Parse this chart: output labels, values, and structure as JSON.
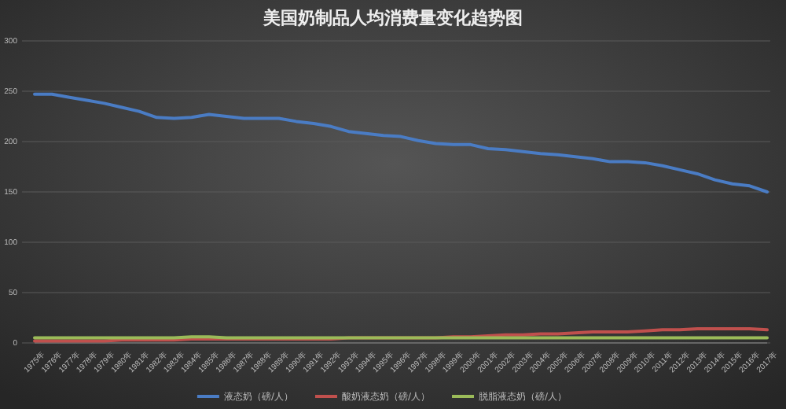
{
  "chart_data": {
    "type": "line",
    "title": "美国奶制品人均消费量变化趋势图",
    "categories": [
      "1975年",
      "1976年",
      "1977年",
      "1978年",
      "1979年",
      "1980年",
      "1981年",
      "1982年",
      "1983年",
      "1984年",
      "1985年",
      "1986年",
      "1987年",
      "1988年",
      "1989年",
      "1990年",
      "1991年",
      "1992年",
      "1993年",
      "1994年",
      "1995年",
      "1996年",
      "1997年",
      "1998年",
      "1999年",
      "2000年",
      "2001年",
      "2002年",
      "2003年",
      "2004年",
      "2005年",
      "2006年",
      "2007年",
      "2008年",
      "2009年",
      "2010年",
      "2011年",
      "2012年",
      "2013年",
      "2014年",
      "2015年",
      "2016年",
      "2017年"
    ],
    "series": [
      {
        "name": "液态奶（磅/人）",
        "color": "#4a7cc4",
        "values": [
          247,
          247,
          244,
          241,
          238,
          234,
          230,
          224,
          223,
          224,
          227,
          225,
          223,
          223,
          223,
          220,
          218,
          215,
          210,
          208,
          206,
          205,
          201,
          198,
          197,
          197,
          193,
          192,
          190,
          188,
          187,
          185,
          183,
          180,
          180,
          179,
          176,
          172,
          168,
          162,
          158,
          156,
          150
        ]
      },
      {
        "name": "酸奶液态奶（磅/人）",
        "color": "#c0504d",
        "values": [
          2,
          2,
          2,
          2,
          2,
          3,
          3,
          3,
          3,
          4,
          4,
          4,
          4,
          4,
          4,
          4,
          4,
          4,
          5,
          5,
          5,
          5,
          5,
          5,
          6,
          6,
          7,
          8,
          8,
          9,
          9,
          10,
          11,
          11,
          11,
          12,
          13,
          13,
          14,
          14,
          14,
          14,
          13
        ]
      },
      {
        "name": "脱脂液态奶（磅/人）",
        "color": "#9bbb59",
        "values": [
          5,
          5,
          5,
          5,
          5,
          5,
          5,
          5,
          5,
          6,
          6,
          5,
          5,
          5,
          5,
          5,
          5,
          5,
          5,
          5,
          5,
          5,
          5,
          5,
          5,
          5,
          5,
          5,
          5,
          5,
          5,
          5,
          5,
          5,
          5,
          5,
          5,
          5,
          5,
          5,
          5,
          5,
          5
        ]
      }
    ],
    "ylim": [
      0,
      300
    ],
    "yticks": [
      0,
      50,
      100,
      150,
      200,
      250,
      300
    ],
    "grid": "y",
    "legend": "bottom",
    "line_style": "solid",
    "marker": "none"
  }
}
